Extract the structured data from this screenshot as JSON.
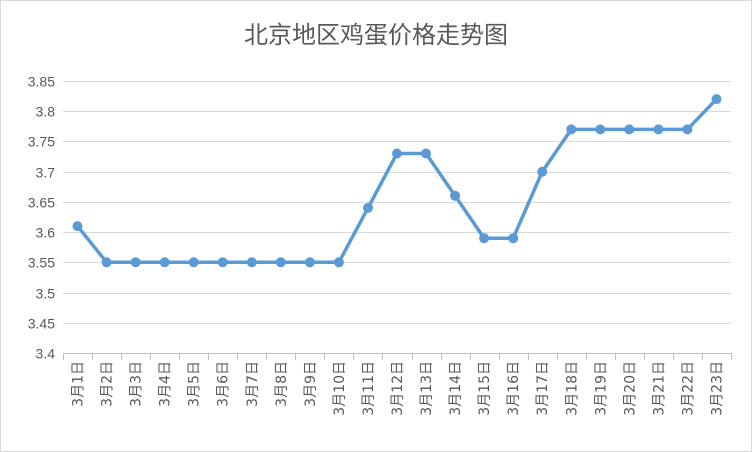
{
  "chart_data": {
    "type": "line",
    "title": "北京地区鸡蛋价格走势图",
    "xlabel": "",
    "ylabel": "",
    "ylim": [
      3.4,
      3.85
    ],
    "yticks": [
      "3.4",
      "3.45",
      "3.5",
      "3.55",
      "3.6",
      "3.65",
      "3.7",
      "3.75",
      "3.8",
      "3.85"
    ],
    "grid": true,
    "legend": "none",
    "categories": [
      "3月1日",
      "3月2日",
      "3月3日",
      "3月4日",
      "3月5日",
      "3月6日",
      "3月7日",
      "3月8日",
      "3月9日",
      "3月10日",
      "3月11日",
      "3月12日",
      "3月13日",
      "3月14日",
      "3月15日",
      "3月16日",
      "3月17日",
      "3月18日",
      "3月19日",
      "3月20日",
      "3月21日",
      "3月22日",
      "3月23日"
    ],
    "series": [
      {
        "values": [
          3.61,
          3.55,
          3.55,
          3.55,
          3.55,
          3.55,
          3.55,
          3.55,
          3.55,
          3.55,
          3.64,
          3.73,
          3.73,
          3.66,
          3.59,
          3.59,
          3.7,
          3.77,
          3.77,
          3.77,
          3.77,
          3.77,
          3.82
        ],
        "color": "#5b9bd5"
      }
    ]
  }
}
